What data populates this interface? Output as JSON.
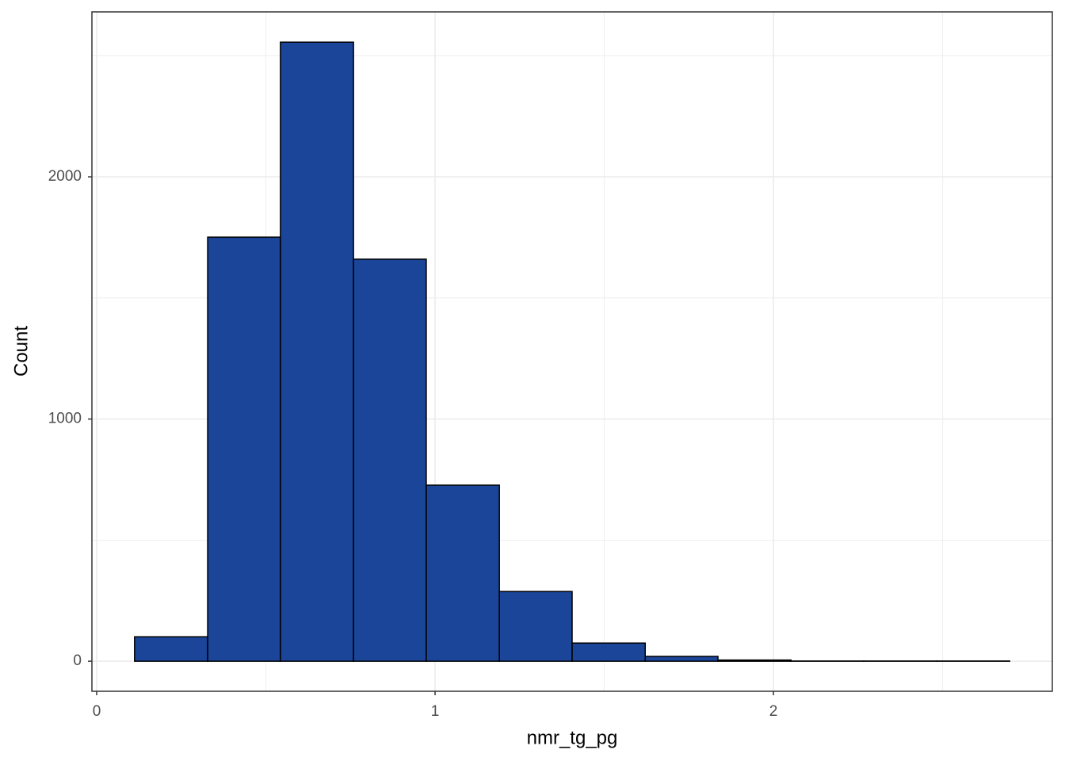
{
  "chart_data": {
    "type": "histogram",
    "x_label": "nmr_tg_pg",
    "y_label": "Count",
    "bins": [
      0.112,
      0.328,
      0.543,
      0.759,
      0.974,
      1.19,
      1.405,
      1.621,
      1.836,
      2.052,
      2.267,
      2.483,
      2.698
    ],
    "counts": [
      101,
      1751,
      2556,
      1660,
      727,
      288,
      75,
      20,
      5,
      1,
      1,
      1
    ],
    "color": "#1a4599",
    "edge_color": "#000000",
    "xlim": [
      -0.014,
      2.824
    ],
    "xticks": [
      0,
      1,
      2
    ],
    "x_minor_grid": [
      0.5,
      1.5,
      2.5
    ],
    "ylim": [
      -124,
      2681
    ],
    "yticks": [
      0,
      1000,
      2000
    ],
    "y_minor_grid": [
      500,
      1500,
      2500
    ],
    "grid": true
  }
}
